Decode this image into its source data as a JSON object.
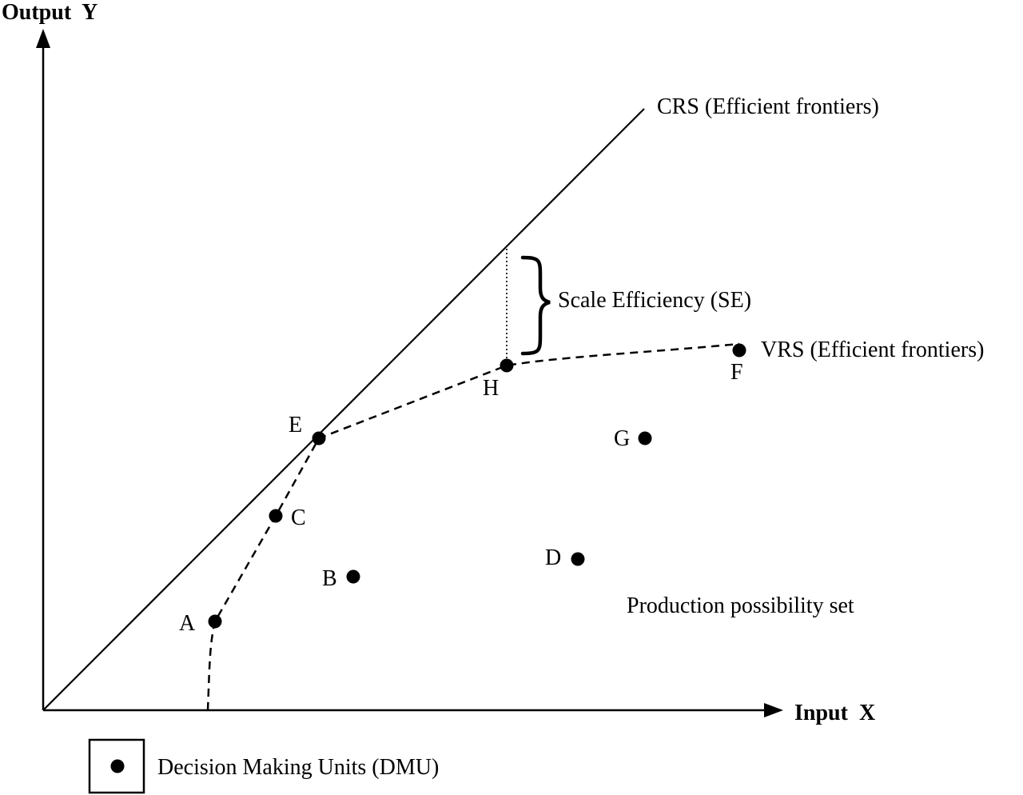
{
  "axes": {
    "y_label": "Output  Y",
    "x_label": "Input  X"
  },
  "frontiers": {
    "crs_label": "CRS (Efficient frontiers)",
    "vrs_label": "VRS (Efficient frontiers)"
  },
  "annotations": {
    "scale_efficiency": "Scale Efficiency (SE)",
    "production_set": "Production possibility set"
  },
  "points": {
    "A": "A",
    "B": "B",
    "C": "C",
    "D": "D",
    "E": "E",
    "F": "F",
    "G": "G",
    "H": "H"
  },
  "legend": {
    "label": "Decision Making Units (DMU)",
    "marker_icon": "filled-circle"
  },
  "colors": {
    "ink": "#000000",
    "background": "#ffffff"
  }
}
